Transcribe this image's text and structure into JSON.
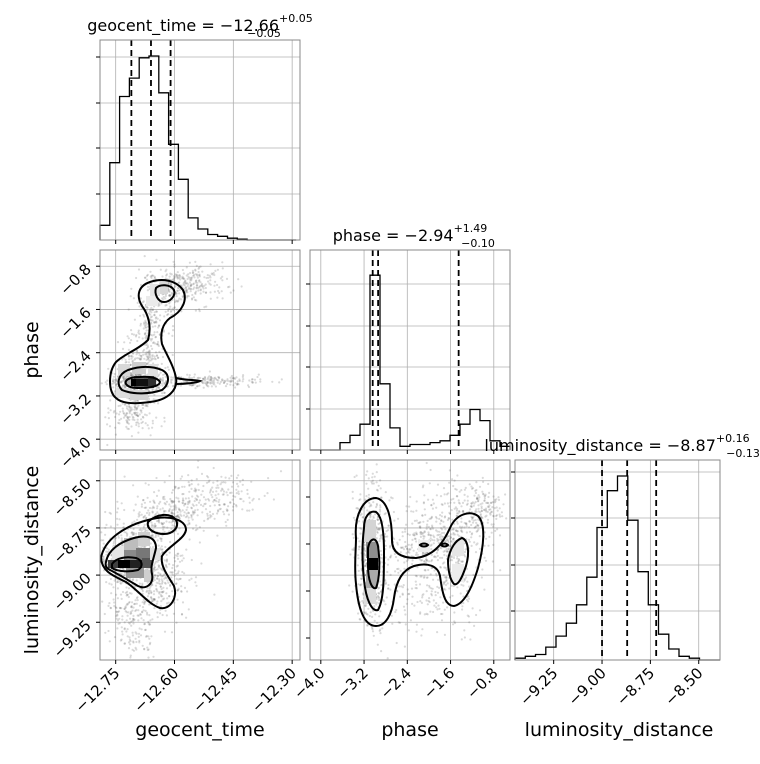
{
  "chart_data": {
    "type": "corner",
    "parameters": [
      {
        "name": "geocent_time",
        "axis_label": "geocent_time",
        "range": [
          -12.79,
          -12.28
        ],
        "ticks": [
          -12.75,
          -12.6,
          -12.45,
          -12.3
        ],
        "tick_labels": [
          "−12.75",
          "−12.60",
          "−12.45",
          "−12.30"
        ],
        "title": {
          "prefix": "geocent_time = −12.66",
          "sup": "+0.05",
          "sub": "−0.05"
        },
        "quantiles": [
          -12.71,
          -12.66,
          -12.61
        ],
        "hist_bins": {
          "start": -12.79,
          "width": 0.025,
          "heights": [
            0.08,
            0.42,
            0.78,
            0.88,
            0.99,
            1.0,
            0.8,
            0.52,
            0.33,
            0.12,
            0.06,
            0.03,
            0.02,
            0.01,
            0.005,
            0.0,
            0.0,
            0.0,
            0.0,
            0.0
          ]
        }
      },
      {
        "name": "phase",
        "axis_label": "phase",
        "range": [
          -4.2,
          -0.5
        ],
        "ticks": [
          -4.0,
          -3.2,
          -2.4,
          -1.6,
          -0.8
        ],
        "tick_labels": [
          "−4.0",
          "−3.2",
          "−2.4",
          "−1.6",
          "−0.8"
        ],
        "title": {
          "prefix": "phase = −2.94",
          "sup": "+1.49",
          "sub": "−0.10"
        },
        "quantiles": [
          -3.04,
          -2.94,
          -1.45
        ],
        "hist_bins": {
          "start": -4.2,
          "width": 0.185,
          "heights": [
            0.0,
            0.0,
            0.0,
            0.04,
            0.08,
            0.14,
            0.95,
            0.36,
            0.12,
            0.02,
            0.03,
            0.03,
            0.04,
            0.05,
            0.08,
            0.14,
            0.22,
            0.16,
            0.05,
            0.02
          ]
        }
      },
      {
        "name": "luminosity_distance",
        "axis_label": "luminosity_distance",
        "range": [
          -9.45,
          -8.39
        ],
        "ticks": [
          -9.25,
          -9.0,
          -8.75,
          -8.5
        ],
        "tick_labels": [
          "−9.25",
          "−9.00",
          "−8.75",
          "−8.50"
        ],
        "title": {
          "prefix": "luminosity_distance = −8.87",
          "sup": "+0.16",
          "sub": "−0.13"
        },
        "quantiles": [
          -9.0,
          -8.87,
          -8.72
        ],
        "hist_bins": {
          "start": -9.45,
          "width": 0.053,
          "heights": [
            0.01,
            0.02,
            0.03,
            0.07,
            0.13,
            0.2,
            0.3,
            0.45,
            0.72,
            0.92,
            1.0,
            0.76,
            0.48,
            0.3,
            0.14,
            0.06,
            0.02,
            0.01,
            0.0,
            0.0
          ]
        }
      }
    ],
    "pairs": [
      {
        "x": "geocent_time",
        "y": "phase"
      },
      {
        "x": "geocent_time",
        "y": "luminosity_distance"
      },
      {
        "x": "phase",
        "y": "luminosity_distance"
      }
    ],
    "grid": true,
    "legend": "none"
  }
}
